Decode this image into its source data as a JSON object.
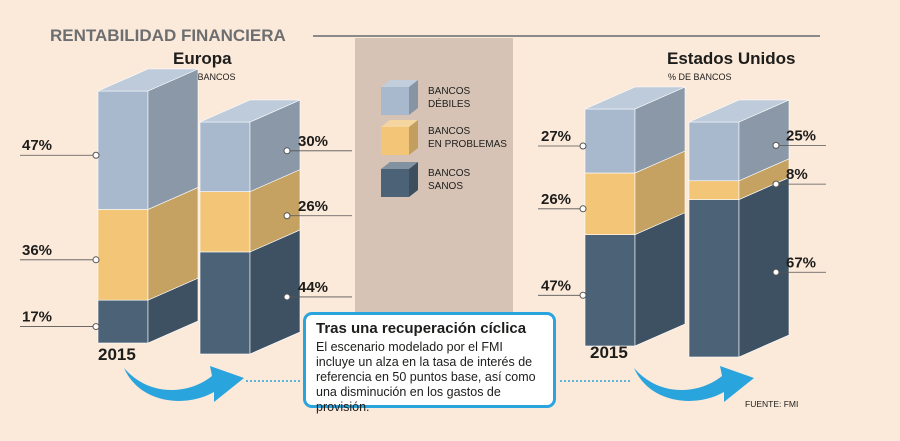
{
  "header": {
    "title": "RENTABILIDAD FINANCIERA"
  },
  "colors": {
    "debiles": "#a8b9cd",
    "problemas": "#f2c577",
    "sanos": "#4c6377",
    "accent": "#2aa4dc",
    "legend_bg": "#d6c3b6"
  },
  "legend": {
    "items": [
      {
        "line1": "BANCOS",
        "line2": "DÉBILES"
      },
      {
        "line1": "BANCOS",
        "line2": "EN PROBLEMAS"
      },
      {
        "line1": "BANCOS",
        "line2": "SANOS"
      }
    ]
  },
  "callout": {
    "title": "Tras una recuperación cíclica",
    "body": "El escenario modelado por el FMI incluye un alza en la tasa de interés de referencia en 50 puntos base, así como una disminución en los gastos de provisión."
  },
  "source": "FUENTE: FMI",
  "chart_data": [
    {
      "type": "bar",
      "stacked": true,
      "title": "Europa",
      "ylabel": "% DE BANCOS",
      "categories": [
        "2015",
        ""
      ],
      "ylim": [
        0,
        100
      ],
      "series": [
        {
          "name": "BANCOS SANOS",
          "values": [
            17,
            44
          ],
          "labels": [
            "17%",
            "44%"
          ]
        },
        {
          "name": "BANCOS EN PROBLEMAS",
          "values": [
            36,
            26
          ],
          "labels": [
            "36%",
            "26%"
          ]
        },
        {
          "name": "BANCOS DÉBILES",
          "values": [
            47,
            30
          ],
          "labels": [
            "47%",
            "30%"
          ]
        }
      ]
    },
    {
      "type": "bar",
      "stacked": true,
      "title": "Estados Unidos",
      "ylabel": "% DE BANCOS",
      "categories": [
        "2015",
        ""
      ],
      "ylim": [
        0,
        100
      ],
      "series": [
        {
          "name": "BANCOS SANOS",
          "values": [
            47,
            67
          ],
          "labels": [
            "47%",
            "67%"
          ]
        },
        {
          "name": "BANCOS EN PROBLEMAS",
          "values": [
            26,
            8
          ],
          "labels": [
            "26%",
            "8%"
          ]
        },
        {
          "name": "BANCOS DÉBILES",
          "values": [
            27,
            25
          ],
          "labels": [
            "27%",
            "25%"
          ]
        }
      ]
    }
  ]
}
